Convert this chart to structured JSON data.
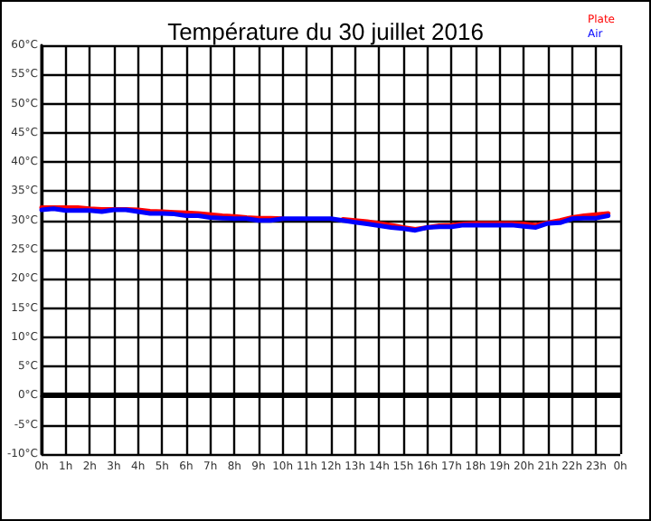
{
  "chart_data": {
    "type": "line",
    "title": "Température du 30 juillet 2016",
    "x": [
      "2016-07-30T00:00",
      "2016-07-30T00:30",
      "2016-07-30T01:00",
      "2016-07-30T01:30",
      "2016-07-30T02:00",
      "2016-07-30T02:30",
      "2016-07-30T03:00",
      "2016-07-30T03:30",
      "2016-07-30T04:00",
      "2016-07-30T04:30",
      "2016-07-30T05:00",
      "2016-07-30T05:30",
      "2016-07-30T06:00",
      "2016-07-30T06:30",
      "2016-07-30T07:00",
      "2016-07-30T07:30",
      "2016-07-30T08:00",
      "2016-07-30T08:30",
      "2016-07-30T09:00",
      "2016-07-30T09:30",
      "2016-07-30T10:00",
      "2016-07-30T10:30",
      "2016-07-30T11:00",
      "2016-07-30T11:30",
      "2016-07-30T12:00",
      "2016-07-30T12:30",
      "2016-07-30T13:00",
      "2016-07-30T13:30",
      "2016-07-30T14:00",
      "2016-07-30T14:30",
      "2016-07-30T15:00",
      "2016-07-30T15:30",
      "2016-07-30T16:00",
      "2016-07-30T16:30",
      "2016-07-30T17:00",
      "2016-07-30T17:30",
      "2016-07-30T18:00",
      "2016-07-30T18:30",
      "2016-07-30T19:00",
      "2016-07-30T19:30",
      "2016-07-30T20:00",
      "2016-07-30T20:30",
      "2016-07-30T21:00",
      "2016-07-30T21:30",
      "2016-07-30T22:00",
      "2016-07-30T22:30",
      "2016-07-30T23:00",
      "2016-07-30T23:30"
    ],
    "series": [
      {
        "name": "Plate",
        "color": "#ff0000",
        "values": [
          32.2,
          32.2,
          32.2,
          32.2,
          32.0,
          31.9,
          31.9,
          31.9,
          31.8,
          31.6,
          31.5,
          31.4,
          31.3,
          31.2,
          31.0,
          30.8,
          30.7,
          30.5,
          30.4,
          30.4,
          30.3,
          null,
          null,
          null,
          null,
          30.2,
          30.0,
          29.8,
          29.5,
          29.2,
          28.8,
          28.5,
          28.8,
          29.1,
          29.2,
          29.4,
          29.5,
          29.5,
          29.5,
          29.5,
          29.4,
          29.2,
          29.6,
          30.0,
          30.5,
          30.8,
          31.0,
          31.2
        ]
      },
      {
        "name": "Air",
        "color": "#0000ff",
        "values": [
          31.8,
          32.0,
          31.7,
          31.7,
          31.7,
          31.5,
          31.8,
          31.8,
          31.5,
          31.2,
          31.2,
          31.1,
          30.8,
          30.8,
          30.5,
          30.4,
          30.3,
          30.3,
          30.0,
          30.0,
          30.3,
          30.3,
          30.3,
          30.3,
          30.3,
          30.0,
          29.7,
          29.4,
          29.1,
          28.8,
          28.6,
          28.3,
          28.8,
          28.9,
          28.9,
          29.2,
          29.2,
          29.2,
          29.2,
          29.2,
          29.0,
          28.8,
          29.5,
          29.6,
          30.3,
          30.4,
          30.4,
          30.8
        ]
      }
    ],
    "xlim": [
      "2016-07-30T00:00",
      "2016-07-31T00:00"
    ],
    "xticks": [
      {
        "value": "2016-07-30T00:00",
        "label": "0h"
      },
      {
        "value": "2016-07-30T01:00",
        "label": "1h"
      },
      {
        "value": "2016-07-30T02:00",
        "label": "2h"
      },
      {
        "value": "2016-07-30T03:00",
        "label": "3h"
      },
      {
        "value": "2016-07-30T04:00",
        "label": "4h"
      },
      {
        "value": "2016-07-30T05:00",
        "label": "5h"
      },
      {
        "value": "2016-07-30T06:00",
        "label": "6h"
      },
      {
        "value": "2016-07-30T07:00",
        "label": "7h"
      },
      {
        "value": "2016-07-30T08:00",
        "label": "8h"
      },
      {
        "value": "2016-07-30T09:00",
        "label": "9h"
      },
      {
        "value": "2016-07-30T10:00",
        "label": "10h"
      },
      {
        "value": "2016-07-30T11:00",
        "label": "11h"
      },
      {
        "value": "2016-07-30T12:00",
        "label": "12h"
      },
      {
        "value": "2016-07-30T13:00",
        "label": "13h"
      },
      {
        "value": "2016-07-30T14:00",
        "label": "14h"
      },
      {
        "value": "2016-07-30T15:00",
        "label": "15h"
      },
      {
        "value": "2016-07-30T16:00",
        "label": "16h"
      },
      {
        "value": "2016-07-30T17:00",
        "label": "17h"
      },
      {
        "value": "2016-07-30T18:00",
        "label": "18h"
      },
      {
        "value": "2016-07-30T19:00",
        "label": "19h"
      },
      {
        "value": "2016-07-30T20:00",
        "label": "20h"
      },
      {
        "value": "2016-07-30T21:00",
        "label": "21h"
      },
      {
        "value": "2016-07-30T22:00",
        "label": "22h"
      },
      {
        "value": "2016-07-30T23:00",
        "label": "23h"
      },
      {
        "value": "2016-07-31T00:00",
        "label": "0h"
      }
    ],
    "ylim": [
      -10,
      60
    ],
    "yticks": [
      {
        "value": -10,
        "label": "-10°C"
      },
      {
        "value": -5,
        "label": "-5°C"
      },
      {
        "value": 0,
        "label": "0°C"
      },
      {
        "value": 5,
        "label": "5°C"
      },
      {
        "value": 10,
        "label": "10°C"
      },
      {
        "value": 15,
        "label": "15°C"
      },
      {
        "value": 20,
        "label": "20°C"
      },
      {
        "value": 25,
        "label": "25°C"
      },
      {
        "value": 30,
        "label": "30°C"
      },
      {
        "value": 35,
        "label": "35°C"
      },
      {
        "value": 40,
        "label": "40°C"
      },
      {
        "value": 45,
        "label": "45°C"
      },
      {
        "value": 50,
        "label": "50°C"
      },
      {
        "value": 55,
        "label": "55°C"
      },
      {
        "value": 60,
        "label": "60°C"
      }
    ],
    "ref_lines": [
      {
        "axis": "y",
        "value": 0,
        "color": "#000000"
      }
    ],
    "grid": true,
    "legend": "top right",
    "marker": "none",
    "line_style": "solid"
  }
}
